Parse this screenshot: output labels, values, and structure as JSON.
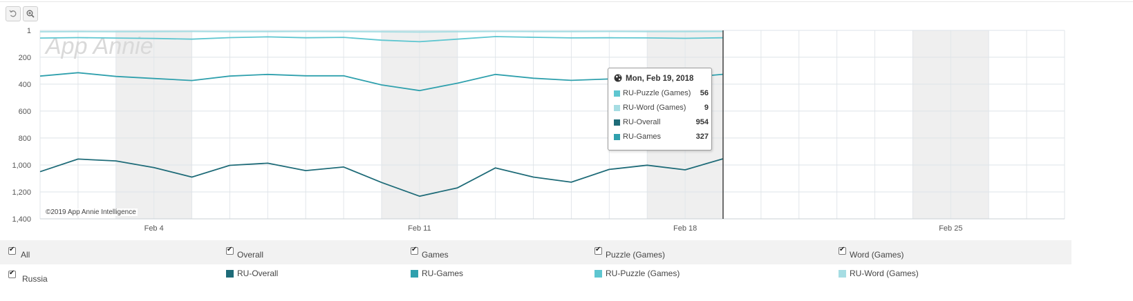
{
  "toolbar": {
    "reset_icon": "undo-icon",
    "zoom_icon": "zoom-in-icon"
  },
  "watermark": "App Annie",
  "copyright": "©2019 App Annie Intelligence",
  "colors": {
    "RU-Overall": "#1e6b78",
    "RU-Games": "#2fa0ad",
    "RU-Puzzle (Games)": "#5ec6d0",
    "RU-Word (Games)": "#a6dde3",
    "weekend_band": "#efefef",
    "grid": "#e2e6ea"
  },
  "tooltip": {
    "date": "Mon, Feb 19, 2018",
    "icon": "globe-icon",
    "rows": [
      {
        "name": "RU-Puzzle (Games)",
        "value": "56"
      },
      {
        "name": "RU-Word (Games)",
        "value": "9"
      },
      {
        "name": "RU-Overall",
        "value": "954"
      },
      {
        "name": "RU-Games",
        "value": "327"
      }
    ]
  },
  "legend": {
    "filters": [
      "All",
      "Overall",
      "Games",
      "Puzzle (Games)",
      "Word (Games)"
    ],
    "country": "Russia",
    "series": [
      "RU-Overall",
      "RU-Games",
      "RU-Puzzle (Games)",
      "RU-Word (Games)"
    ]
  },
  "chart_data": {
    "type": "line",
    "y_reversed": true,
    "ylim": [
      1,
      1400
    ],
    "yticks": [
      1,
      200,
      400,
      600,
      800,
      1000,
      1200,
      1400
    ],
    "ytick_labels": [
      "1",
      "200",
      "400",
      "600",
      "800",
      "1,000",
      "1,200",
      "1,400"
    ],
    "x_start": "2018-02-01",
    "x_end": "2018-02-28",
    "xtick_dates": [
      "2018-02-04",
      "2018-02-11",
      "2018-02-18",
      "2018-02-25"
    ],
    "xtick_labels": [
      "Feb 4",
      "Feb 11",
      "Feb 18",
      "Feb 25"
    ],
    "weekend_bands": [
      [
        "2018-02-03",
        "2018-02-05"
      ],
      [
        "2018-02-10",
        "2018-02-12"
      ],
      [
        "2018-02-17",
        "2018-02-19"
      ],
      [
        "2018-02-24",
        "2018-02-26"
      ]
    ],
    "cursor_date": "2018-02-19",
    "grid": true,
    "x": [
      "2018-02-01",
      "2018-02-02",
      "2018-02-03",
      "2018-02-04",
      "2018-02-05",
      "2018-02-06",
      "2018-02-07",
      "2018-02-08",
      "2018-02-09",
      "2018-02-10",
      "2018-02-11",
      "2018-02-12",
      "2018-02-13",
      "2018-02-14",
      "2018-02-15",
      "2018-02-16",
      "2018-02-17",
      "2018-02-18",
      "2018-02-19"
    ],
    "series": [
      {
        "name": "RU-Word (Games)",
        "values": [
          12,
          10,
          11,
          10,
          9,
          11,
          10,
          9,
          10,
          12,
          14,
          11,
          9,
          10,
          10,
          9,
          10,
          10,
          9
        ]
      },
      {
        "name": "RU-Puzzle (Games)",
        "values": [
          58,
          55,
          58,
          61,
          66,
          55,
          49,
          56,
          53,
          74,
          85,
          66,
          47,
          52,
          57,
          56,
          57,
          60,
          56
        ]
      },
      {
        "name": "RU-Games",
        "values": [
          340,
          315,
          343,
          358,
          373,
          340,
          328,
          338,
          338,
          406,
          448,
          393,
          328,
          356,
          372,
          362,
          356,
          352,
          327
        ]
      },
      {
        "name": "RU-Overall",
        "values": [
          1050,
          956,
          970,
          1020,
          1090,
          1003,
          987,
          1042,
          1015,
          1130,
          1232,
          1170,
          1022,
          1090,
          1128,
          1033,
          1002,
          1036,
          954
        ]
      }
    ]
  }
}
